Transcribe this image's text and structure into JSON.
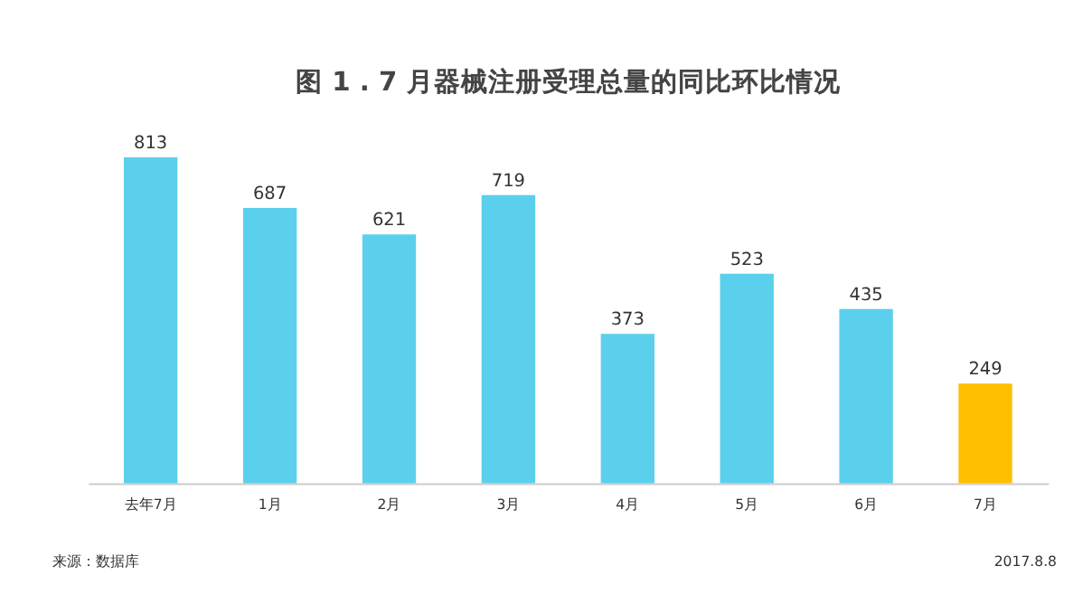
{
  "chart_data": {
    "type": "bar",
    "title": "图 1 . 7 月器械注册受理总量的同比环比情况",
    "categories": [
      "去年7月",
      "1月",
      "2月",
      "3月",
      "4月",
      "5月",
      "6月",
      "7月"
    ],
    "values": [
      813,
      687,
      621,
      719,
      373,
      523,
      435,
      249
    ],
    "colors": [
      "#5bd0ec",
      "#5bd0ec",
      "#5bd0ec",
      "#5bd0ec",
      "#5bd0ec",
      "#5bd0ec",
      "#5bd0ec",
      "#ffbf00"
    ],
    "data_labels": true,
    "grid": false,
    "annotations": [
      "来源：数据库",
      "2017.8.8"
    ]
  }
}
